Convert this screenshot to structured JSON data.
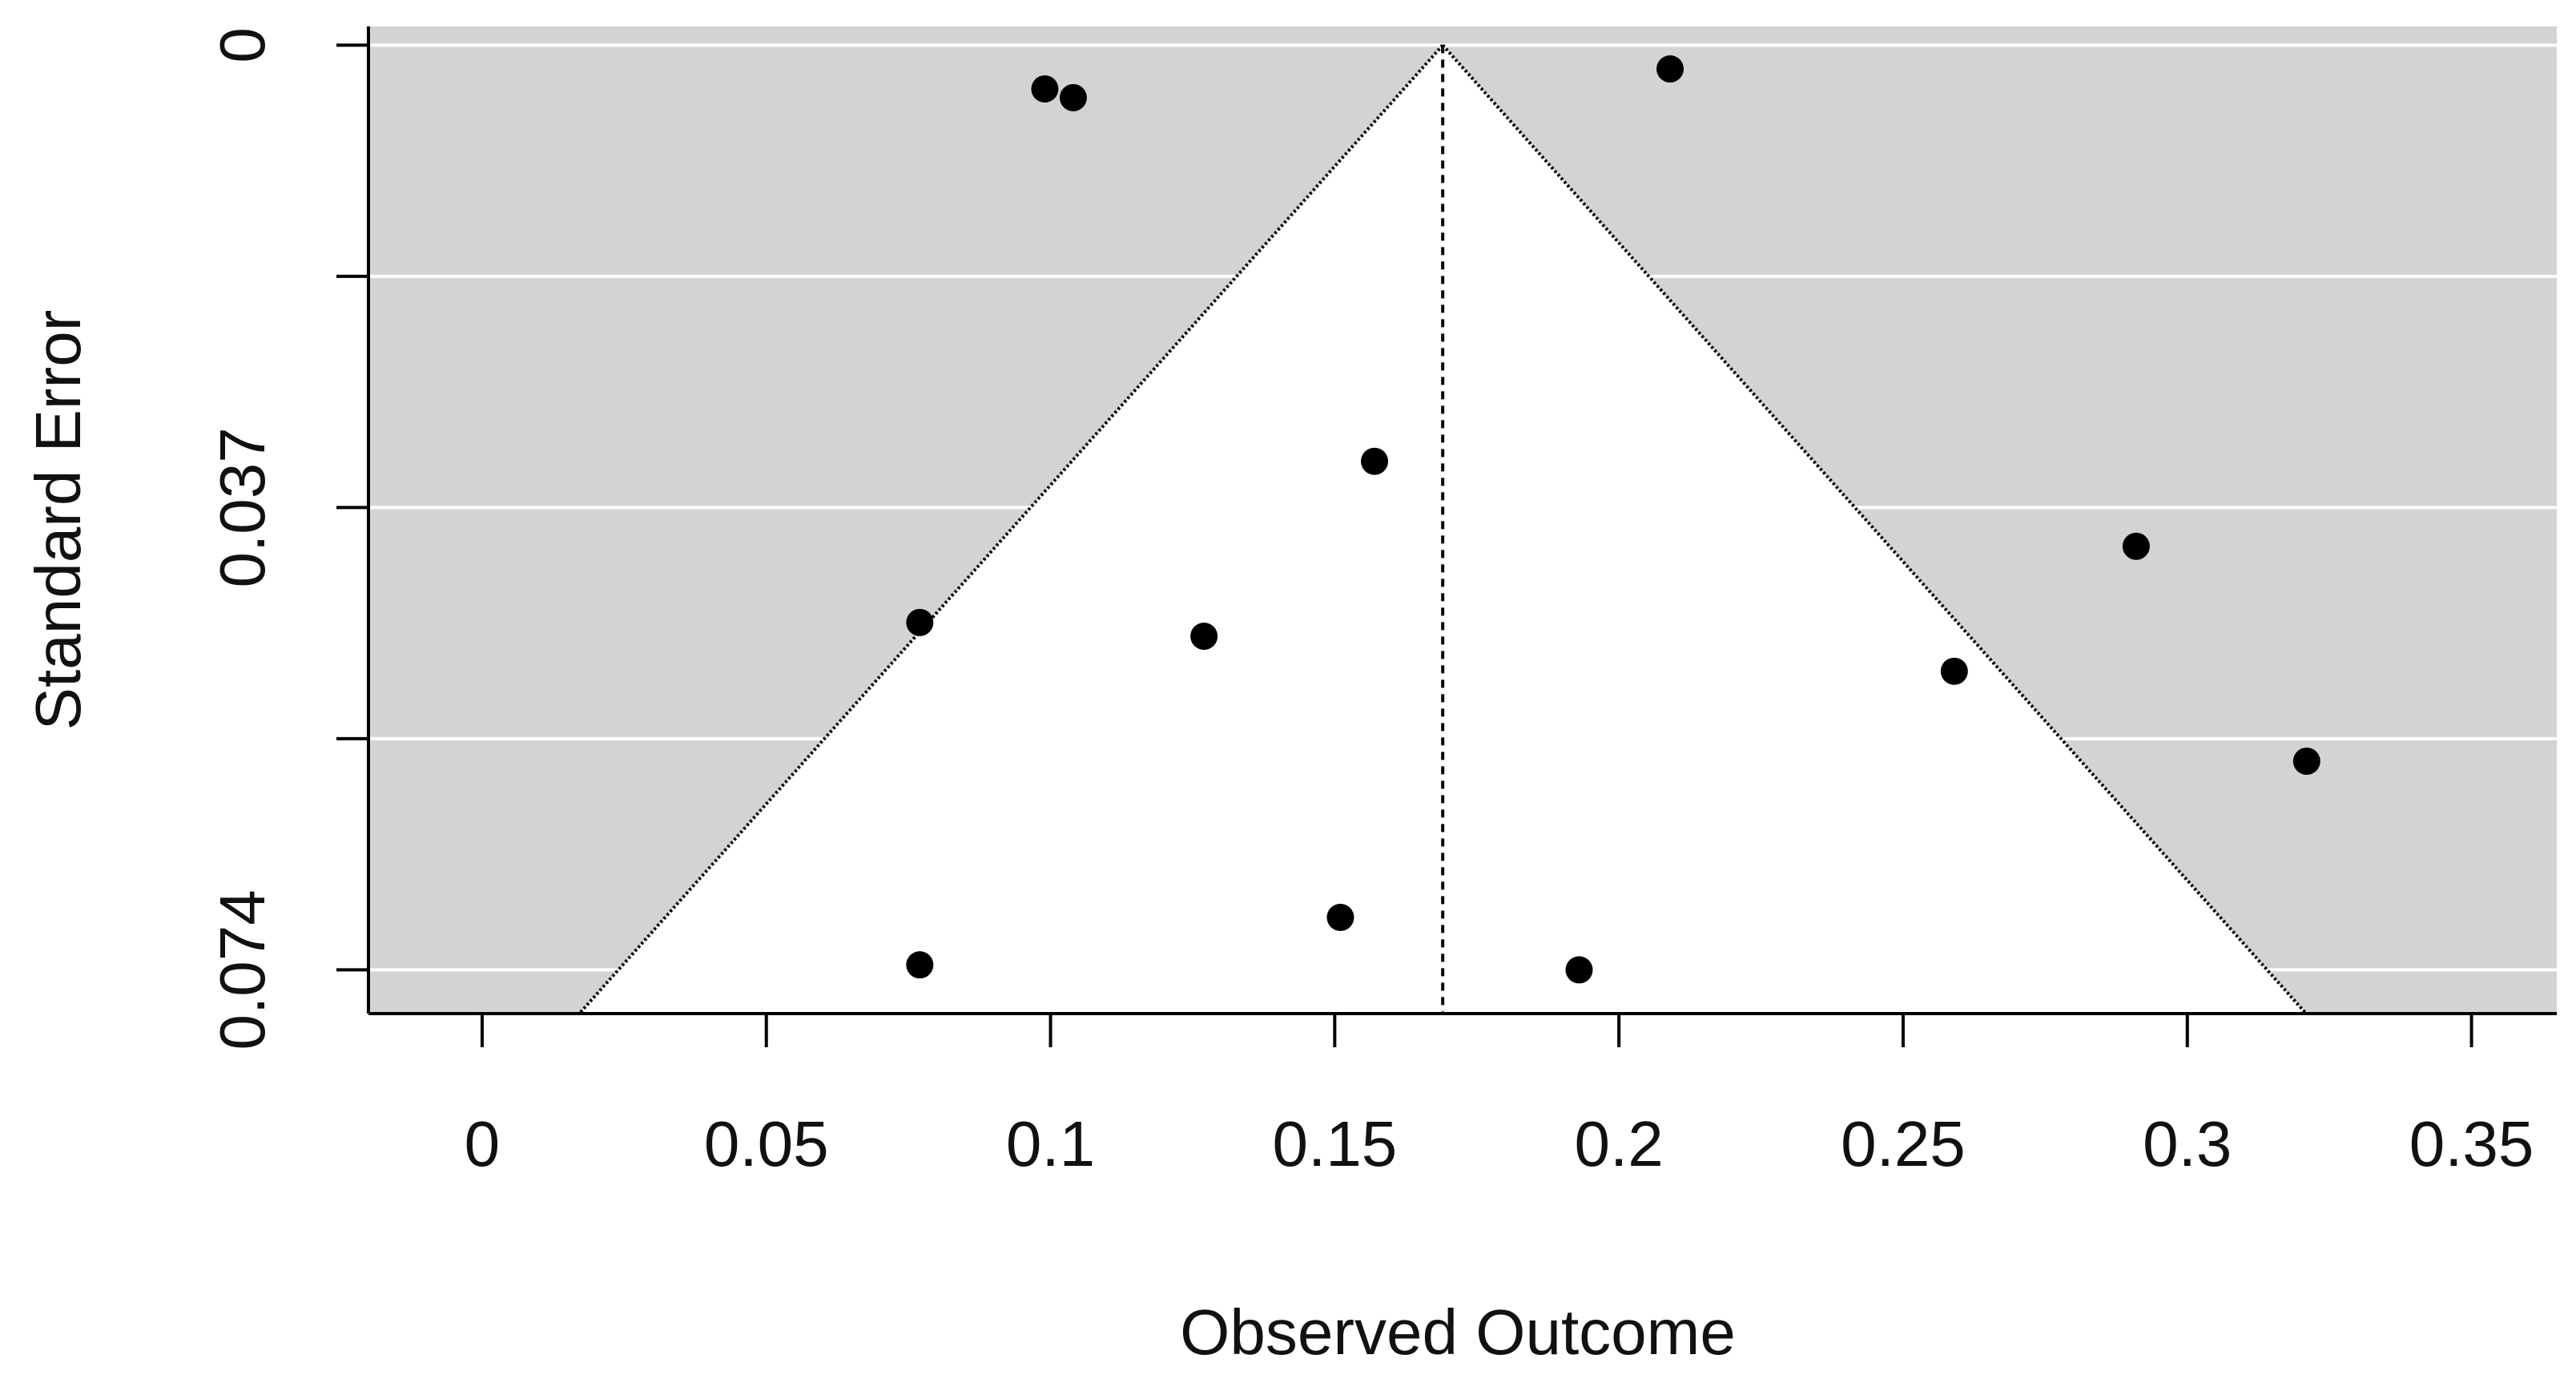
{
  "chart_data": {
    "type": "scatter",
    "subtype": "funnel",
    "title": "",
    "xlabel": "Observed Outcome",
    "ylabel": "Standard Error",
    "xlim": [
      -0.02,
      0.365
    ],
    "ylim": [
      0.0775,
      -0.0015
    ],
    "y_reversed": true,
    "x_ticks": [
      0,
      0.05,
      0.1,
      0.15,
      0.2,
      0.25,
      0.3,
      0.35
    ],
    "x_tick_labels": [
      "0",
      "0.05",
      "0.1",
      "0.15",
      "0.2",
      "0.25",
      "0.3",
      "0.35"
    ],
    "y_ticks": [
      0,
      0.037,
      0.074
    ],
    "y_tick_labels": [
      "0",
      "0.037",
      "0.074"
    ],
    "y_gridlines": [
      0,
      0.0185,
      0.037,
      0.0555,
      0.074
    ],
    "grid": true,
    "summary_estimate": 0.169,
    "funnel_critical_value": 1.96,
    "colors": {
      "background": "#d3d3d3",
      "funnel_fill": "#ffffff",
      "points": "#000000",
      "gridlines": "#ffffff"
    },
    "points": [
      {
        "x": 0.099,
        "y": 0.0035
      },
      {
        "x": 0.104,
        "y": 0.0042
      },
      {
        "x": 0.209,
        "y": 0.0019
      },
      {
        "x": 0.157,
        "y": 0.0333
      },
      {
        "x": 0.077,
        "y": 0.0462
      },
      {
        "x": 0.127,
        "y": 0.0473
      },
      {
        "x": 0.291,
        "y": 0.0401
      },
      {
        "x": 0.259,
        "y": 0.0501
      },
      {
        "x": 0.321,
        "y": 0.0573
      },
      {
        "x": 0.151,
        "y": 0.0698
      },
      {
        "x": 0.077,
        "y": 0.0736
      },
      {
        "x": 0.193,
        "y": 0.074
      }
    ]
  }
}
